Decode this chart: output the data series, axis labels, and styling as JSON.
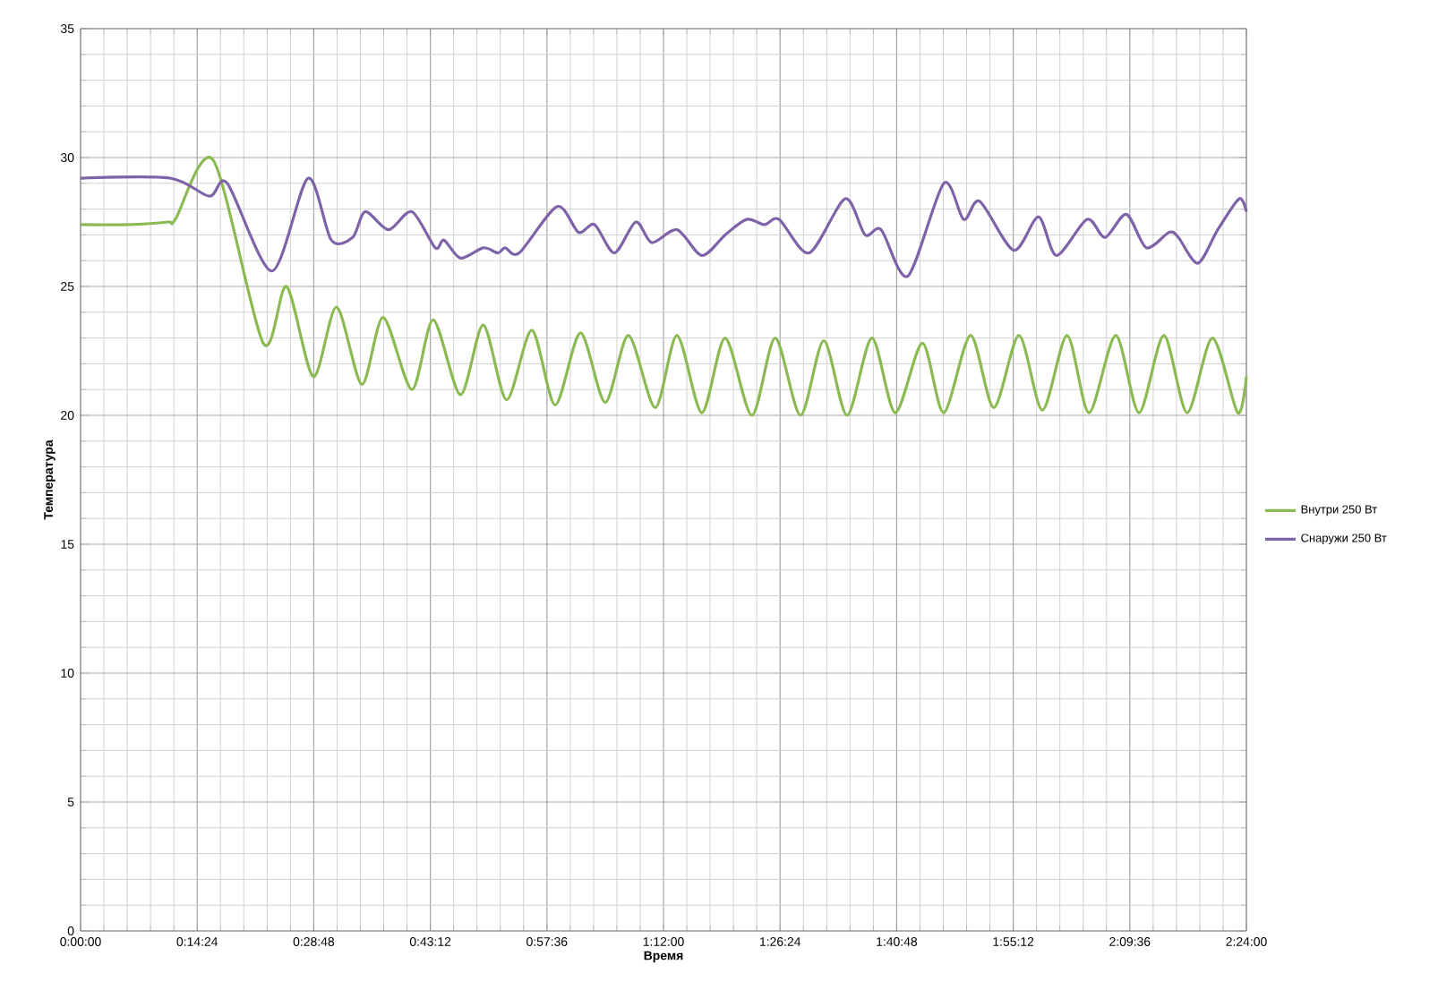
{
  "chart_data": {
    "type": "line",
    "xlabel": "Время",
    "ylabel": "Температура",
    "xlim": [
      0,
      2.4
    ],
    "ylim": [
      0,
      35
    ],
    "xticks": [
      {
        "value": 0,
        "label": "0:00:00"
      },
      {
        "value": 0.24,
        "label": "0:14:24"
      },
      {
        "value": 0.48,
        "label": "0:28:48"
      },
      {
        "value": 0.72,
        "label": "0:43:12"
      },
      {
        "value": 0.96,
        "label": "0:57:36"
      },
      {
        "value": 1.2,
        "label": "1:12:00"
      },
      {
        "value": 1.44,
        "label": "1:26:24"
      },
      {
        "value": 1.68,
        "label": "1:40:48"
      },
      {
        "value": 1.92,
        "label": "1:55:12"
      },
      {
        "value": 2.16,
        "label": "2:09:36"
      },
      {
        "value": 2.4,
        "label": "2:24:00"
      }
    ],
    "yticks": [
      0,
      5,
      10,
      15,
      20,
      25,
      30,
      35
    ],
    "grid": true,
    "legend": "right",
    "marker": "none",
    "line_style": "solid",
    "series": [
      {
        "name": "Внутри 250 Вт",
        "color": "#8cba52",
        "x": [
          0,
          0.1,
          0.18,
          0.195,
          0.273,
          0.376,
          0.424,
          0.479,
          0.527,
          0.579,
          0.623,
          0.682,
          0.726,
          0.782,
          0.829,
          0.877,
          0.929,
          0.977,
          1.029,
          1.08,
          1.128,
          1.183,
          1.228,
          1.279,
          1.327,
          1.382,
          1.43,
          1.482,
          1.53,
          1.578,
          1.629,
          1.677,
          1.733,
          1.777,
          1.832,
          1.88,
          1.932,
          1.98,
          2.031,
          2.076,
          2.131,
          2.179,
          2.23,
          2.278,
          2.33,
          2.382,
          2.4
        ],
        "values": [
          27.4,
          27.4,
          27.5,
          27.6,
          29.9,
          22.8,
          25.0,
          21.5,
          24.2,
          21.2,
          23.8,
          21.0,
          23.7,
          20.8,
          23.5,
          20.6,
          23.3,
          20.4,
          23.2,
          20.5,
          23.1,
          20.3,
          23.1,
          20.1,
          23.0,
          20.0,
          23.0,
          20.0,
          22.9,
          20.0,
          23.0,
          20.1,
          22.8,
          20.1,
          23.1,
          20.3,
          23.1,
          20.2,
          23.1,
          20.1,
          23.1,
          20.1,
          23.1,
          20.1,
          23.0,
          20.1,
          21.5
        ]
      },
      {
        "name": "Снаружи 250 Вт",
        "color": "#7f63a8",
        "x": [
          0,
          0.184,
          0.265,
          0.302,
          0.394,
          0.468,
          0.516,
          0.56,
          0.586,
          0.634,
          0.682,
          0.73,
          0.748,
          0.782,
          0.829,
          0.859,
          0.874,
          0.903,
          0.981,
          1.025,
          1.058,
          1.099,
          1.143,
          1.176,
          1.228,
          1.279,
          1.327,
          1.371,
          1.408,
          1.438,
          1.5,
          1.574,
          1.615,
          1.648,
          1.703,
          1.777,
          1.818,
          1.851,
          1.921,
          1.972,
          2.009,
          2.072,
          2.109,
          2.153,
          2.194,
          2.241,
          2.26,
          2.3,
          2.341,
          2.385,
          2.4
        ],
        "values": [
          29.2,
          29.2,
          28.5,
          29.0,
          25.6,
          29.2,
          26.8,
          26.9,
          27.9,
          27.2,
          27.9,
          26.5,
          26.8,
          26.1,
          26.5,
          26.3,
          26.5,
          26.3,
          28.1,
          27.1,
          27.4,
          26.3,
          27.5,
          26.7,
          27.2,
          26.2,
          27.0,
          27.6,
          27.4,
          27.6,
          26.3,
          28.4,
          27.0,
          27.2,
          25.4,
          29.0,
          27.6,
          28.3,
          26.4,
          27.7,
          26.2,
          27.6,
          26.9,
          27.8,
          26.5,
          27.1,
          26.9,
          25.9,
          27.2,
          28.4,
          27.9
        ]
      }
    ]
  }
}
